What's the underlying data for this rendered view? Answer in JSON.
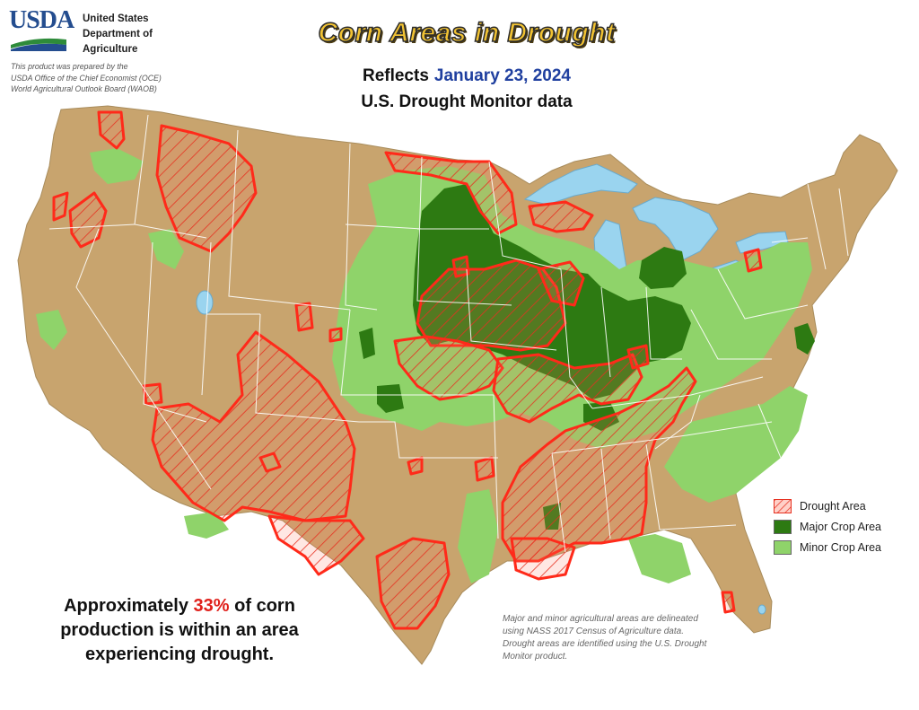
{
  "header": {
    "logo_text": "USDA",
    "agency_name": "United States\nDepartment of\nAgriculture",
    "prepared_by": "This product was prepared by the\nUSDA Office of the Chief Economist (OCE)\nWorld Agricultural Outlook Board (WAOB)"
  },
  "title": "Corn Areas in Drought",
  "reflects_label": "Reflects",
  "date": "January 23, 2024",
  "subtitle": "U.S. Drought Monitor data",
  "legend": {
    "items": [
      {
        "label": "Drought Area"
      },
      {
        "label": "Major Crop Area"
      },
      {
        "label": "Minor Crop Area"
      }
    ]
  },
  "stat": {
    "prefix": "Approximately ",
    "percent": "33%",
    "suffix": " of corn production is within an area experiencing drought."
  },
  "note": "Major and minor agricultural areas are delineated using NASS 2017 Census of Agriculture data.  Drought areas are identified using the U.S. Drought Monitor product.",
  "colors": {
    "background_land": "#c8a46e",
    "water": "#9ad4ef",
    "major_crop": "#2d7a12",
    "minor_crop": "#8fd36a",
    "drought_outline": "#ff2a1a",
    "title_fill": "#f1c232"
  }
}
